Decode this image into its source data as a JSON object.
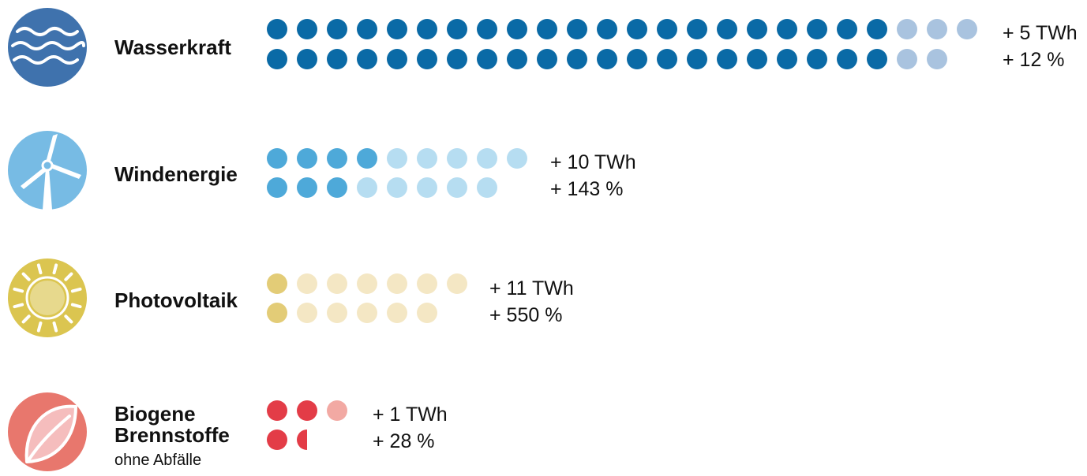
{
  "chart_data": {
    "type": "dot-matrix",
    "categories": [
      {
        "id": "wasserkraft",
        "label": "Wasserkraft",
        "sublabel": "",
        "icon": "water-waves-icon",
        "color_dark": "#0a6aa6",
        "color_light": "#a9c3df",
        "icon_bg": "#3f72ad",
        "rows": [
          {
            "filled": 21,
            "light": 3
          },
          {
            "filled": 21,
            "light": 2
          }
        ],
        "increase_twh": "+ 5 TWh",
        "increase_pct": "+ 12 %"
      },
      {
        "id": "windenergie",
        "label": "Windenergie",
        "sublabel": "",
        "icon": "wind-turbine-icon",
        "color_dark": "#4ea9d9",
        "color_light": "#b6ddf1",
        "icon_bg": "#77bbe4",
        "rows": [
          {
            "filled": 4,
            "light": 5
          },
          {
            "filled": 3,
            "light": 5
          }
        ],
        "increase_twh": "+ 10 TWh",
        "increase_pct": "+ 143 %"
      },
      {
        "id": "photovoltaik",
        "label": "Photovoltaik",
        "sublabel": "",
        "icon": "sun-icon",
        "color_dark": "#e3cc77",
        "color_light": "#f4e7c4",
        "icon_bg": "#dbc550",
        "rows": [
          {
            "filled": 1,
            "light": 6
          },
          {
            "filled": 1,
            "light": 5
          }
        ],
        "increase_twh": "+ 11 TWh",
        "increase_pct": "+ 550 %"
      },
      {
        "id": "biogene-brennstoffe",
        "label": "Biogene",
        "label2": "Brennstoffe",
        "sublabel": "ohne Abfälle",
        "icon": "leaf-icon",
        "color_dark": "#e33c47",
        "color_light": "#f2a9a3",
        "icon_bg": "#e8776d",
        "rows": [
          {
            "filled": 2,
            "light": 1
          },
          {
            "filled": 1.5,
            "light": 0
          }
        ],
        "increase_twh": "+ 1 TWh",
        "increase_pct": "+ 28 %"
      }
    ]
  }
}
